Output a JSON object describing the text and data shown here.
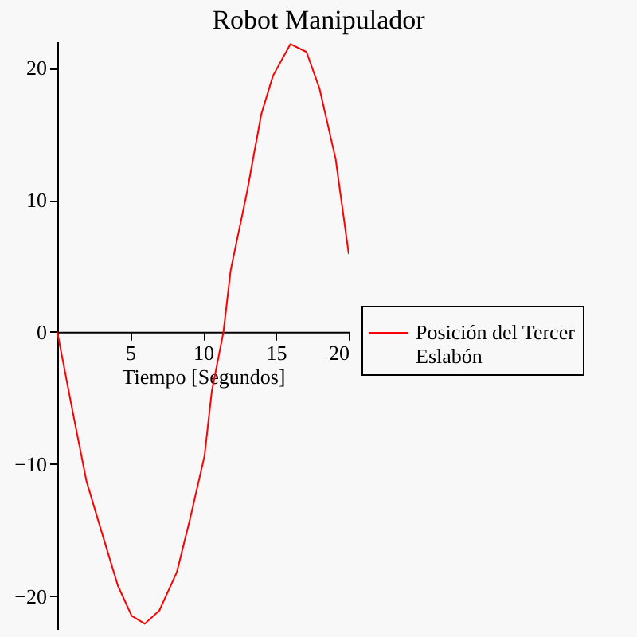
{
  "chart_data": {
    "type": "line",
    "title": "Robot Manipulador",
    "xlabel": "Tiempo [Segundos]",
    "x": [
      0,
      1.1,
      2,
      3,
      4.15,
      5.1,
      6,
      7,
      8.2,
      9.1,
      10.1,
      10.6,
      11.4,
      11.9,
      13,
      14,
      14.8,
      16,
      17.1,
      18,
      19.1,
      20
    ],
    "series": [
      {
        "name": "Posición del Tercer Eslabón",
        "color": "#ff0000",
        "values": [
          0,
          -6.3,
          -11.3,
          -15,
          -19.2,
          -21.5,
          -22.1,
          -21.1,
          -18.2,
          -14.2,
          -9.4,
          -4.5,
          0,
          4.7,
          10.5,
          16.5,
          19.4,
          21.8,
          21.2,
          18.4,
          13.1,
          5.9
        ]
      }
    ],
    "xlim": [
      0,
      20
    ],
    "xticks": [
      5,
      10,
      15,
      20
    ],
    "ylim": [
      -22.5,
      22
    ],
    "yticks": [
      -20,
      -10,
      0,
      10,
      20
    ],
    "grid": false,
    "legend": "right"
  }
}
